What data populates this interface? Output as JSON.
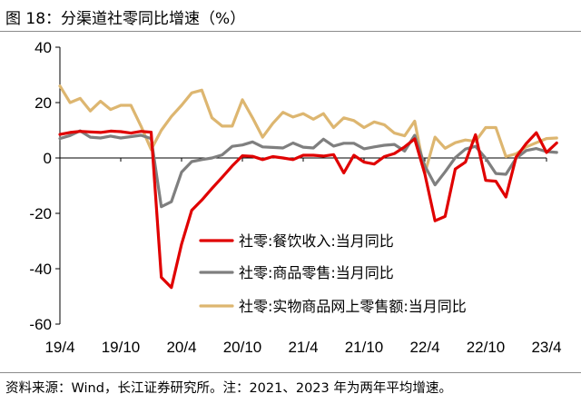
{
  "title": "图 18：分渠道社零同比增速（%）",
  "source": "资料来源：Wind，长江证券研究所。注：2021、2023 年为两年平均增速。",
  "chart_data": {
    "type": "line",
    "title": "图 18：分渠道社零同比增速（%）",
    "xlabel": "",
    "ylabel": "",
    "ylim": [
      -60,
      40
    ],
    "yticks": [
      40,
      20,
      0,
      -20,
      -40,
      -60
    ],
    "xlim": [
      0,
      48
    ],
    "xticks": [
      {
        "x": 0,
        "label": "19/4"
      },
      {
        "x": 6,
        "label": "19/10"
      },
      {
        "x": 12,
        "label": "20/4"
      },
      {
        "x": 18,
        "label": "20/10"
      },
      {
        "x": 24,
        "label": "21/4"
      },
      {
        "x": 30,
        "label": "21/10"
      },
      {
        "x": 36,
        "label": "22/4"
      },
      {
        "x": 42,
        "label": "22/10"
      },
      {
        "x": 48,
        "label": "23/4"
      }
    ],
    "grid": false,
    "legend_position": "lower-center",
    "x_unit": "months since 2019/4",
    "series": [
      {
        "name": "社零:餐饮收入:当月同比",
        "color": "#e00000",
        "points": [
          [
            0,
            8.5
          ],
          [
            1,
            9.2
          ],
          [
            2,
            9.6
          ],
          [
            3,
            9.4
          ],
          [
            4,
            9.2
          ],
          [
            5,
            9.7
          ],
          [
            6,
            9.5
          ],
          [
            7,
            9.0
          ],
          [
            8,
            9.6
          ],
          [
            9,
            9.3
          ],
          [
            10,
            -43.1
          ],
          [
            11,
            -46.8
          ],
          [
            12,
            -31.1
          ],
          [
            13,
            -18.9
          ],
          [
            14,
            -15.2
          ],
          [
            15,
            -11.0
          ],
          [
            16,
            -7.0
          ],
          [
            17,
            -2.9
          ],
          [
            18,
            0.8
          ],
          [
            19,
            0.6
          ],
          [
            20,
            -0.6
          ],
          [
            21,
            0.5
          ],
          [
            22,
            0.0
          ],
          [
            23,
            -0.6
          ],
          [
            24,
            1.0
          ],
          [
            25,
            1.0
          ],
          [
            26,
            0.7
          ],
          [
            27,
            1.2
          ],
          [
            28,
            -5.4
          ],
          [
            29,
            1.0
          ],
          [
            30,
            -1.5
          ],
          [
            31,
            -2.2
          ],
          [
            32,
            0.5
          ],
          [
            33,
            1.6
          ],
          [
            34,
            4.0
          ],
          [
            35,
            6.9
          ],
          [
            36,
            -5.8
          ],
          [
            37,
            -22.7
          ],
          [
            38,
            -21.1
          ],
          [
            39,
            -4.0
          ],
          [
            40,
            -1.5
          ],
          [
            41,
            8.4
          ],
          [
            42,
            -8.1
          ],
          [
            43,
            -8.4
          ],
          [
            44,
            -14.1
          ],
          [
            45,
            0.3
          ],
          [
            46,
            5.2
          ],
          [
            47,
            9.1
          ],
          [
            48,
            2.0
          ],
          [
            49,
            5.4
          ]
        ]
      },
      {
        "name": "社零:商品零售:当月同比",
        "color": "#7f7f7f",
        "points": [
          [
            0,
            7.0
          ],
          [
            1,
            8.1
          ],
          [
            2,
            9.8
          ],
          [
            3,
            7.5
          ],
          [
            4,
            7.2
          ],
          [
            5,
            7.9
          ],
          [
            6,
            7.2
          ],
          [
            7,
            7.7
          ],
          [
            8,
            8.2
          ],
          [
            9,
            7.0
          ],
          [
            10,
            -17.6
          ],
          [
            11,
            -15.8
          ],
          [
            12,
            -5.1
          ],
          [
            13,
            -1.3
          ],
          [
            14,
            -0.6
          ],
          [
            15,
            0.0
          ],
          [
            16,
            1.1
          ],
          [
            17,
            4.2
          ],
          [
            18,
            4.7
          ],
          [
            19,
            5.8
          ],
          [
            20,
            4.0
          ],
          [
            21,
            3.8
          ],
          [
            22,
            3.6
          ],
          [
            23,
            5.4
          ],
          [
            24,
            3.9
          ],
          [
            25,
            3.6
          ],
          [
            26,
            6.8
          ],
          [
            27,
            4.3
          ],
          [
            28,
            5.3
          ],
          [
            29,
            5.3
          ],
          [
            30,
            3.3
          ],
          [
            31,
            4.0
          ],
          [
            32,
            4.6
          ],
          [
            33,
            4.9
          ],
          [
            34,
            2.5
          ],
          [
            35,
            8.2
          ],
          [
            36,
            -2.9
          ],
          [
            37,
            -9.7
          ],
          [
            38,
            -5.0
          ],
          [
            39,
            0.1
          ],
          [
            40,
            3.2
          ],
          [
            41,
            4.2
          ],
          [
            42,
            -0.1
          ],
          [
            43,
            -5.6
          ],
          [
            44,
            -5.9
          ],
          [
            45,
            -0.1
          ],
          [
            46,
            2.7
          ],
          [
            47,
            3.4
          ],
          [
            48,
            2.3
          ],
          [
            49,
            2.0
          ]
        ]
      },
      {
        "name": "社零:实物商品网上零售额:当月同比",
        "color": "#ddb670",
        "points": [
          [
            0,
            26.0
          ],
          [
            1,
            20.0
          ],
          [
            2,
            21.5
          ],
          [
            3,
            17.0
          ],
          [
            4,
            20.5
          ],
          [
            5,
            17.5
          ],
          [
            6,
            19.0
          ],
          [
            7,
            19.0
          ],
          [
            8,
            11.5
          ],
          [
            9,
            3.0
          ],
          [
            10,
            10.0
          ],
          [
            11,
            15.0
          ],
          [
            12,
            19.0
          ],
          [
            13,
            23.5
          ],
          [
            14,
            24.5
          ],
          [
            15,
            14.5
          ],
          [
            16,
            11.5
          ],
          [
            17,
            11.5
          ],
          [
            18,
            21.0
          ],
          [
            19,
            14.5
          ],
          [
            20,
            7.5
          ],
          [
            21,
            12.5
          ],
          [
            22,
            16.5
          ],
          [
            23,
            14.8
          ],
          [
            24,
            16.0
          ],
          [
            25,
            14.0
          ],
          [
            26,
            16.0
          ],
          [
            27,
            11.0
          ],
          [
            28,
            14.5
          ],
          [
            29,
            13.5
          ],
          [
            30,
            11.0
          ],
          [
            31,
            13.0
          ],
          [
            32,
            12.0
          ],
          [
            33,
            9.0
          ],
          [
            34,
            8.0
          ],
          [
            35,
            13.3
          ],
          [
            36,
            -5.5
          ],
          [
            37,
            7.5
          ],
          [
            38,
            3.5
          ],
          [
            39,
            5.5
          ],
          [
            40,
            6.5
          ],
          [
            41,
            6.0
          ],
          [
            42,
            11.0
          ],
          [
            43,
            11.0
          ],
          [
            44,
            0.5
          ],
          [
            45,
            1.5
          ],
          [
            46,
            4.0
          ],
          [
            47,
            5.5
          ],
          [
            48,
            7.0
          ],
          [
            49,
            7.2
          ]
        ]
      }
    ]
  }
}
